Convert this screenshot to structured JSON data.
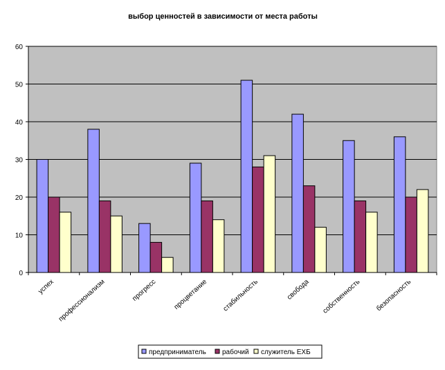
{
  "chart_data": {
    "type": "bar",
    "title": "выбор ценностей  в зависимости от места работы",
    "xlabel": "",
    "ylabel": "",
    "ylim": [
      0,
      60
    ],
    "yticks": [
      0,
      10,
      20,
      30,
      40,
      50,
      60
    ],
    "grid": "horizontal",
    "legend_position": "bottom",
    "plot_background": "#C0C0C0",
    "categories": [
      "успех",
      "профессионализм",
      "прогресс",
      "процветание",
      "стабильность",
      "свобода",
      "собственность",
      "безопасность"
    ],
    "series": [
      {
        "name": "предприниматель",
        "color": "#9999FF",
        "values": [
          30,
          38,
          13,
          29,
          51,
          42,
          35,
          36
        ]
      },
      {
        "name": "рабочий",
        "color": "#993366",
        "values": [
          20,
          19,
          8,
          19,
          28,
          23,
          19,
          20
        ]
      },
      {
        "name": "служитель ЕХБ",
        "color": "#FFFFCC",
        "values": [
          16,
          15,
          4,
          14,
          31,
          12,
          16,
          22
        ]
      }
    ]
  }
}
